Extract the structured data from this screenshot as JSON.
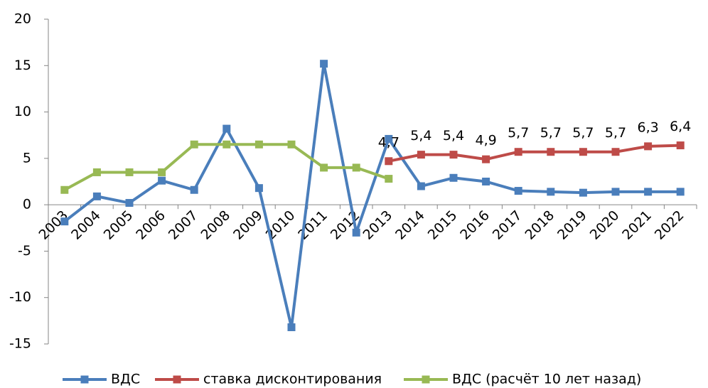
{
  "chart_data": {
    "type": "line",
    "categories": [
      "2003",
      "2004",
      "2005",
      "2006",
      "2007",
      "2008",
      "2009",
      "2010",
      "2011",
      "2012",
      "2013",
      "2014",
      "2015",
      "2016",
      "2017",
      "2018",
      "2019",
      "2020",
      "2021",
      "2022"
    ],
    "series": [
      {
        "name": "ВДС",
        "color": "#4a7ebb",
        "values": [
          -1.8,
          0.9,
          0.2,
          2.6,
          1.6,
          8.2,
          1.8,
          -13.2,
          15.2,
          -3.0,
          7.1,
          2.0,
          2.9,
          2.5,
          1.5,
          1.4,
          1.3,
          1.4,
          1.4,
          1.4
        ]
      },
      {
        "name": "ставка дисконтирования",
        "color": "#be4b48",
        "values": [
          null,
          null,
          null,
          null,
          null,
          null,
          null,
          null,
          null,
          null,
          4.7,
          5.4,
          5.4,
          4.9,
          5.7,
          5.7,
          5.7,
          5.7,
          6.3,
          6.4
        ],
        "value_labels": [
          null,
          null,
          null,
          null,
          null,
          null,
          null,
          null,
          null,
          null,
          "4,7",
          "5,4",
          "5,4",
          "4,9",
          "5,7",
          "5,7",
          "5,7",
          "5,7",
          "6,3",
          "6,4"
        ]
      },
      {
        "name": "ВДС (расчёт 10 лет назад)",
        "color": "#98b954",
        "values": [
          1.6,
          3.5,
          3.5,
          3.5,
          6.5,
          6.5,
          6.5,
          6.5,
          4.0,
          4.0,
          2.8,
          null,
          null,
          null,
          null,
          null,
          null,
          null,
          null,
          null
        ]
      }
    ],
    "ylim": [
      -15,
      20
    ],
    "yticks": [
      -15,
      -10,
      -5,
      0,
      5,
      10,
      15,
      20
    ],
    "grid": false,
    "legend": "bottom"
  }
}
